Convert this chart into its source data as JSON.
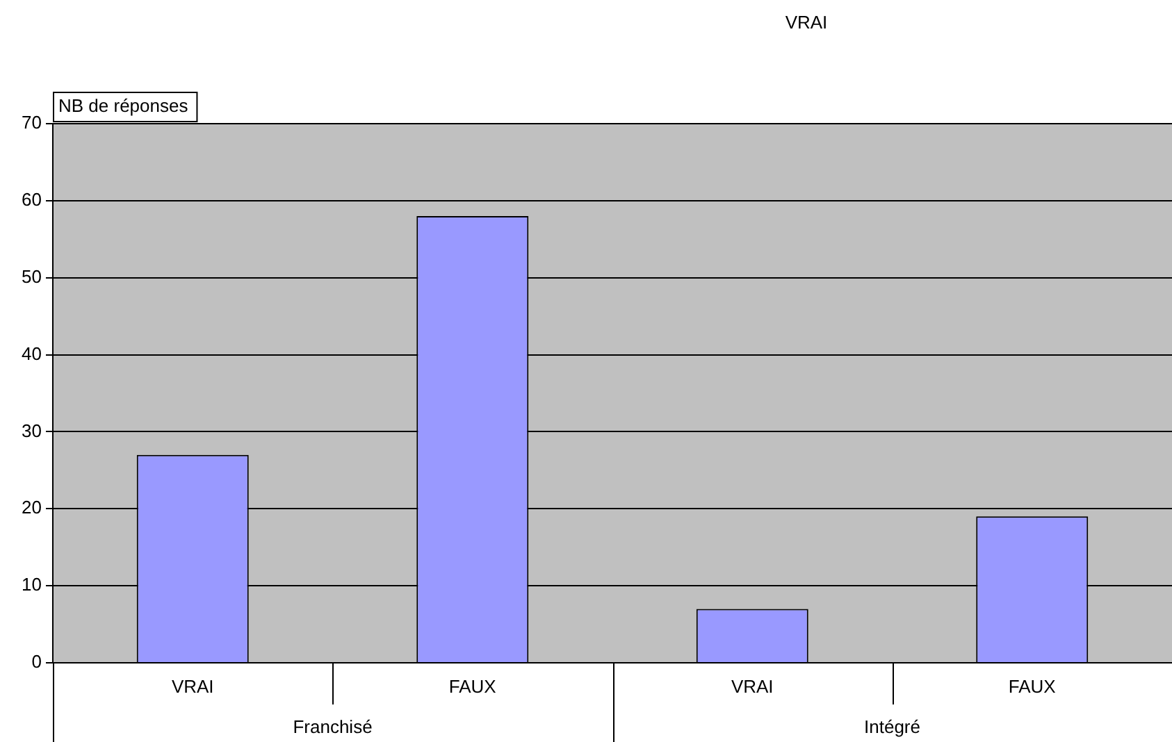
{
  "chart_data": {
    "type": "bar",
    "title": "VRAI",
    "ylabel": "NB de réponses",
    "categories": [
      "VRAI",
      "FAUX",
      "VRAI",
      "FAUX"
    ],
    "values": [
      27,
      58,
      7,
      19
    ],
    "color": "#9999ff",
    "ylim": [
      0,
      70
    ],
    "yticks": [
      0,
      10,
      20,
      30,
      40,
      50,
      60,
      70
    ],
    "grid": "y",
    "legend": false,
    "annotations": [
      "Franchisé",
      "Intégré"
    ]
  }
}
